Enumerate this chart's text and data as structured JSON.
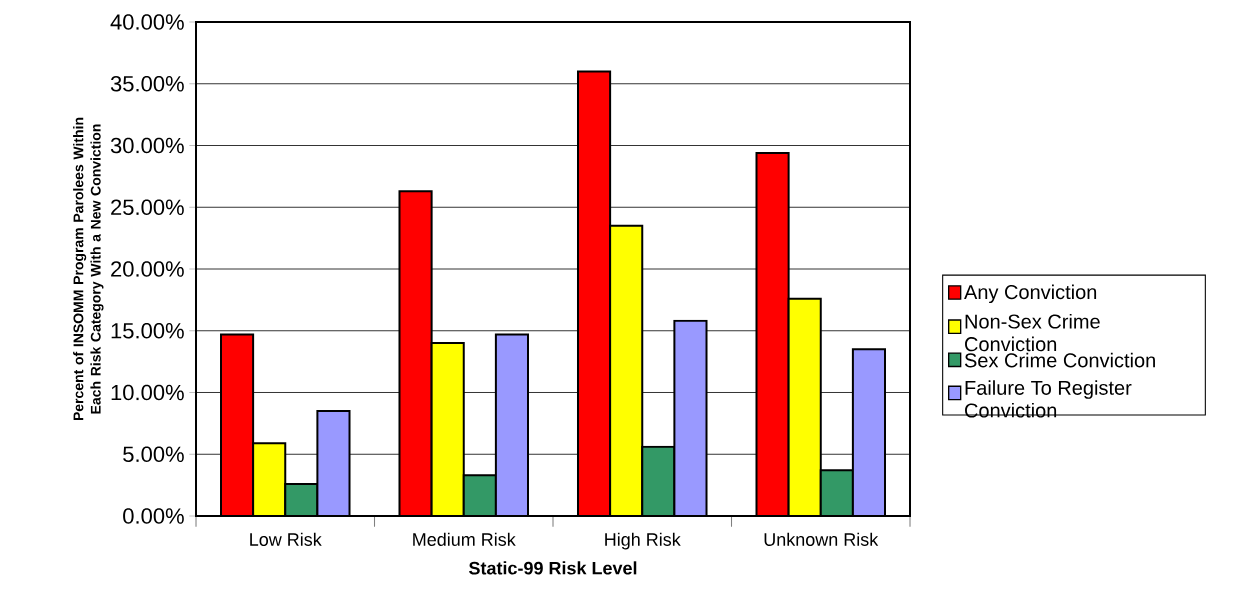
{
  "chart_data": {
    "type": "bar",
    "xlabel": "Static-99 Risk Level",
    "ylabel": "Percent of INSOMM Program Parolees Within Each Risk Category With a New Conviction",
    "categories": [
      "Low Risk",
      "Medium Risk",
      "High Risk",
      "Unknown Risk"
    ],
    "series": [
      {
        "name": "Any Conviction",
        "color": "#ff0000",
        "values": [
          14.7,
          26.3,
          36.0,
          29.4
        ]
      },
      {
        "name": "Non-Sex Crime Conviction",
        "color": "#ffff00",
        "values": [
          5.9,
          14.0,
          23.5,
          17.6
        ]
      },
      {
        "name": "Sex Crime Conviction",
        "color": "#339966",
        "values": [
          2.6,
          3.3,
          5.6,
          3.7
        ]
      },
      {
        "name": "Failure To Register Conviction",
        "color": "#9999ff",
        "values": [
          8.5,
          14.7,
          15.8,
          13.5
        ]
      }
    ],
    "ylim": [
      0,
      40
    ],
    "yticks": [
      {
        "value": 0,
        "label": "0.00%"
      },
      {
        "value": 5,
        "label": "5.00%"
      },
      {
        "value": 10,
        "label": "10.00%"
      },
      {
        "value": 15,
        "label": "15.00%"
      },
      {
        "value": 20,
        "label": "20.00%"
      },
      {
        "value": 25,
        "label": "25.00%"
      },
      {
        "value": 30,
        "label": "30.00%"
      },
      {
        "value": 35,
        "label": "35.00%"
      },
      {
        "value": 40,
        "label": "40.00%"
      }
    ],
    "grid": "y",
    "legend": "right"
  }
}
